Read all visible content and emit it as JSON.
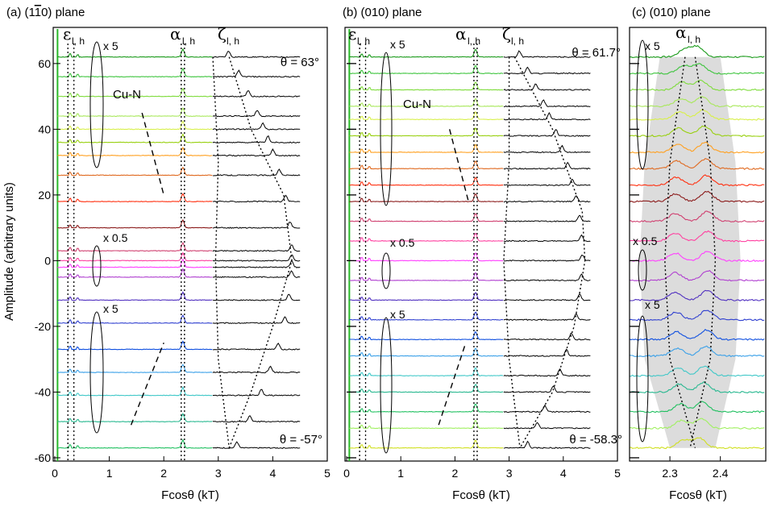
{
  "figure": {
    "ylabel": "Amplitude (arbitrary units)",
    "xlabel": "Fcosθ (kT)",
    "colors": {
      "bg_band": "#dcdcdc",
      "axis": "#000000",
      "black_trace": "#000000",
      "spectrum": [
        "#1a9a1a",
        "#3cc43c",
        "#7fdc3c",
        "#a8e85a",
        "#d8f04a",
        "#98d010",
        "#ffa020",
        "#e06a20",
        "#ff3010",
        "#8b1a1a",
        "#d04070",
        "#ff40a0",
        "#ff40ff",
        "#b040d0",
        "#5030c0",
        "#3040d0",
        "#1050e0",
        "#3aa0e8",
        "#40c8c8",
        "#28b890",
        "#20c060",
        "#a0f060",
        "#d0e020",
        "#70a010",
        "#ffa040",
        "#a06020",
        "#c03030",
        "#ff2000"
      ]
    }
  },
  "chart_data": [
    {
      "type": "line",
      "panel_title": "(a) (1",
      "panel_title_bar": "1",
      "panel_title_end": "0) plane",
      "xlabel": "Fcosθ (kT)",
      "ylabel": "Amplitude (arbitrary units)",
      "xlim": [
        0,
        5
      ],
      "ylim": [
        -61,
        71
      ],
      "xticks": [
        "0",
        "1",
        "2",
        "3",
        "4",
        "5"
      ],
      "yticks": [
        "60",
        "40",
        "20",
        "0",
        "-20",
        "-40",
        "-60"
      ],
      "ytick_values": [
        60,
        40,
        20,
        0,
        -20,
        -40,
        -60
      ],
      "theta_top": "θ = 63°",
      "theta_bottom": "θ = -57°",
      "branches": {
        "epsilon": "ε",
        "alpha": "α",
        "zeta": "ζ",
        "sub": "l, h"
      },
      "scale_labels": [
        "x 5",
        "x 0.5",
        "x 5"
      ],
      "cu_n_label": "Cu-N",
      "trace_offsets": [
        62,
        56,
        50,
        44,
        40,
        36,
        32,
        26,
        18,
        10,
        3,
        0,
        -2,
        -5,
        -12,
        -19,
        -27,
        -34,
        -41,
        -49,
        -57
      ],
      "alpha_peak_f": 2.35,
      "zeta_curve": [
        [
          3.2,
          62
        ],
        [
          3.6,
          40
        ],
        [
          4.2,
          20
        ],
        [
          4.35,
          0
        ],
        [
          4.0,
          -20
        ],
        [
          3.6,
          -40
        ],
        [
          3.2,
          -57
        ]
      ],
      "zeta_left_curve": [
        [
          2.9,
          62
        ],
        [
          3.0,
          30
        ],
        [
          2.95,
          0
        ],
        [
          3.0,
          -30
        ],
        [
          3.2,
          -57
        ]
      ],
      "cu_n_curve": [
        [
          1.6,
          45
        ],
        [
          2.0,
          20
        ]
      ],
      "cu_n_curve_low": [
        [
          1.4,
          -50
        ],
        [
          2.0,
          -25
        ]
      ]
    },
    {
      "type": "line",
      "panel_title": "(b) (010) plane",
      "xlabel": "Fcosθ (kT)",
      "xlim": [
        0,
        5
      ],
      "ylim": [
        -61,
        71
      ],
      "xticks": [
        "0",
        "1",
        "2",
        "3",
        "4",
        "5"
      ],
      "theta_top": "θ = 61.7°",
      "theta_bottom": "θ = -58.3°",
      "branches": {
        "epsilon": "ε",
        "alpha": "α",
        "zeta": "ζ",
        "sub": "l, h"
      },
      "scale_labels": [
        "x 5",
        "x 0.5",
        "x 5"
      ],
      "cu_n_label": "Cu-N",
      "trace_offsets": [
        62,
        57,
        52,
        47,
        43,
        38,
        33,
        28,
        23,
        18,
        12,
        6,
        0,
        -6,
        -12,
        -18,
        -24,
        -29,
        -35,
        -40,
        -46,
        -51,
        -57
      ],
      "alpha_peak_f": 2.38,
      "zeta_curve": [
        [
          3.1,
          62
        ],
        [
          3.8,
          40
        ],
        [
          4.35,
          15
        ],
        [
          4.4,
          0
        ],
        [
          4.2,
          -20
        ],
        [
          3.8,
          -40
        ],
        [
          3.2,
          -57
        ]
      ],
      "zeta_left_curve": [
        [
          3.0,
          62
        ],
        [
          3.0,
          30
        ],
        [
          2.9,
          0
        ],
        [
          3.0,
          -30
        ],
        [
          3.2,
          -57
        ]
      ],
      "cu_n_curve": [
        [
          1.9,
          40
        ],
        [
          2.25,
          18
        ]
      ],
      "cu_n_curve_low": [
        [
          1.7,
          -50
        ],
        [
          2.2,
          -25
        ]
      ]
    },
    {
      "type": "line",
      "panel_title": "(c) (010) plane",
      "xlabel": "Fcosθ (kT)",
      "xlim": [
        2.22,
        2.49
      ],
      "ylim": [
        -61,
        71
      ],
      "xticks": [
        "2.3",
        "2.4"
      ],
      "xtick_values": [
        2.3,
        2.4
      ],
      "branches": {
        "alpha": "α",
        "sub": "l, h"
      },
      "scale_labels": [
        "x 5",
        "x 0.5",
        "x 5"
      ],
      "trace_offsets": [
        62,
        57,
        52,
        47,
        43,
        38,
        33,
        28,
        23,
        18,
        12,
        6,
        0,
        -6,
        -12,
        -18,
        -24,
        -29,
        -35,
        -40,
        -46,
        -51,
        -57
      ],
      "alpha_low_curve": [
        [
          2.33,
          62
        ],
        [
          2.3,
          30
        ],
        [
          2.29,
          0
        ],
        [
          2.3,
          -30
        ],
        [
          2.35,
          -57
        ]
      ],
      "alpha_high_curve": [
        [
          2.35,
          62
        ],
        [
          2.38,
          30
        ],
        [
          2.39,
          0
        ],
        [
          2.38,
          -30
        ],
        [
          2.34,
          -57
        ]
      ]
    }
  ]
}
